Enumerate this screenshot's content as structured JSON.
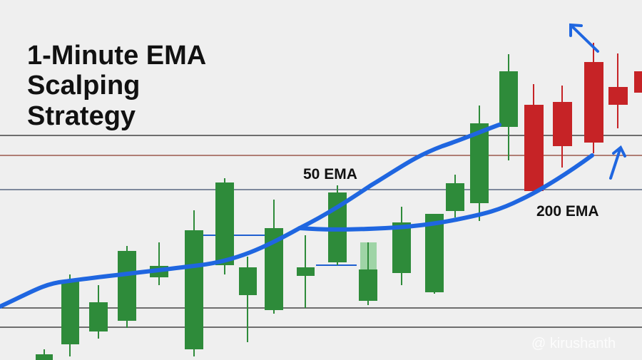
{
  "title": [
    "1-Minute EMA",
    "Scalping",
    "Strategy"
  ],
  "annotations": {
    "ema50": "50 EMA",
    "ema200": "200 EMA"
  },
  "watermark": "@ kirushanth"
}
